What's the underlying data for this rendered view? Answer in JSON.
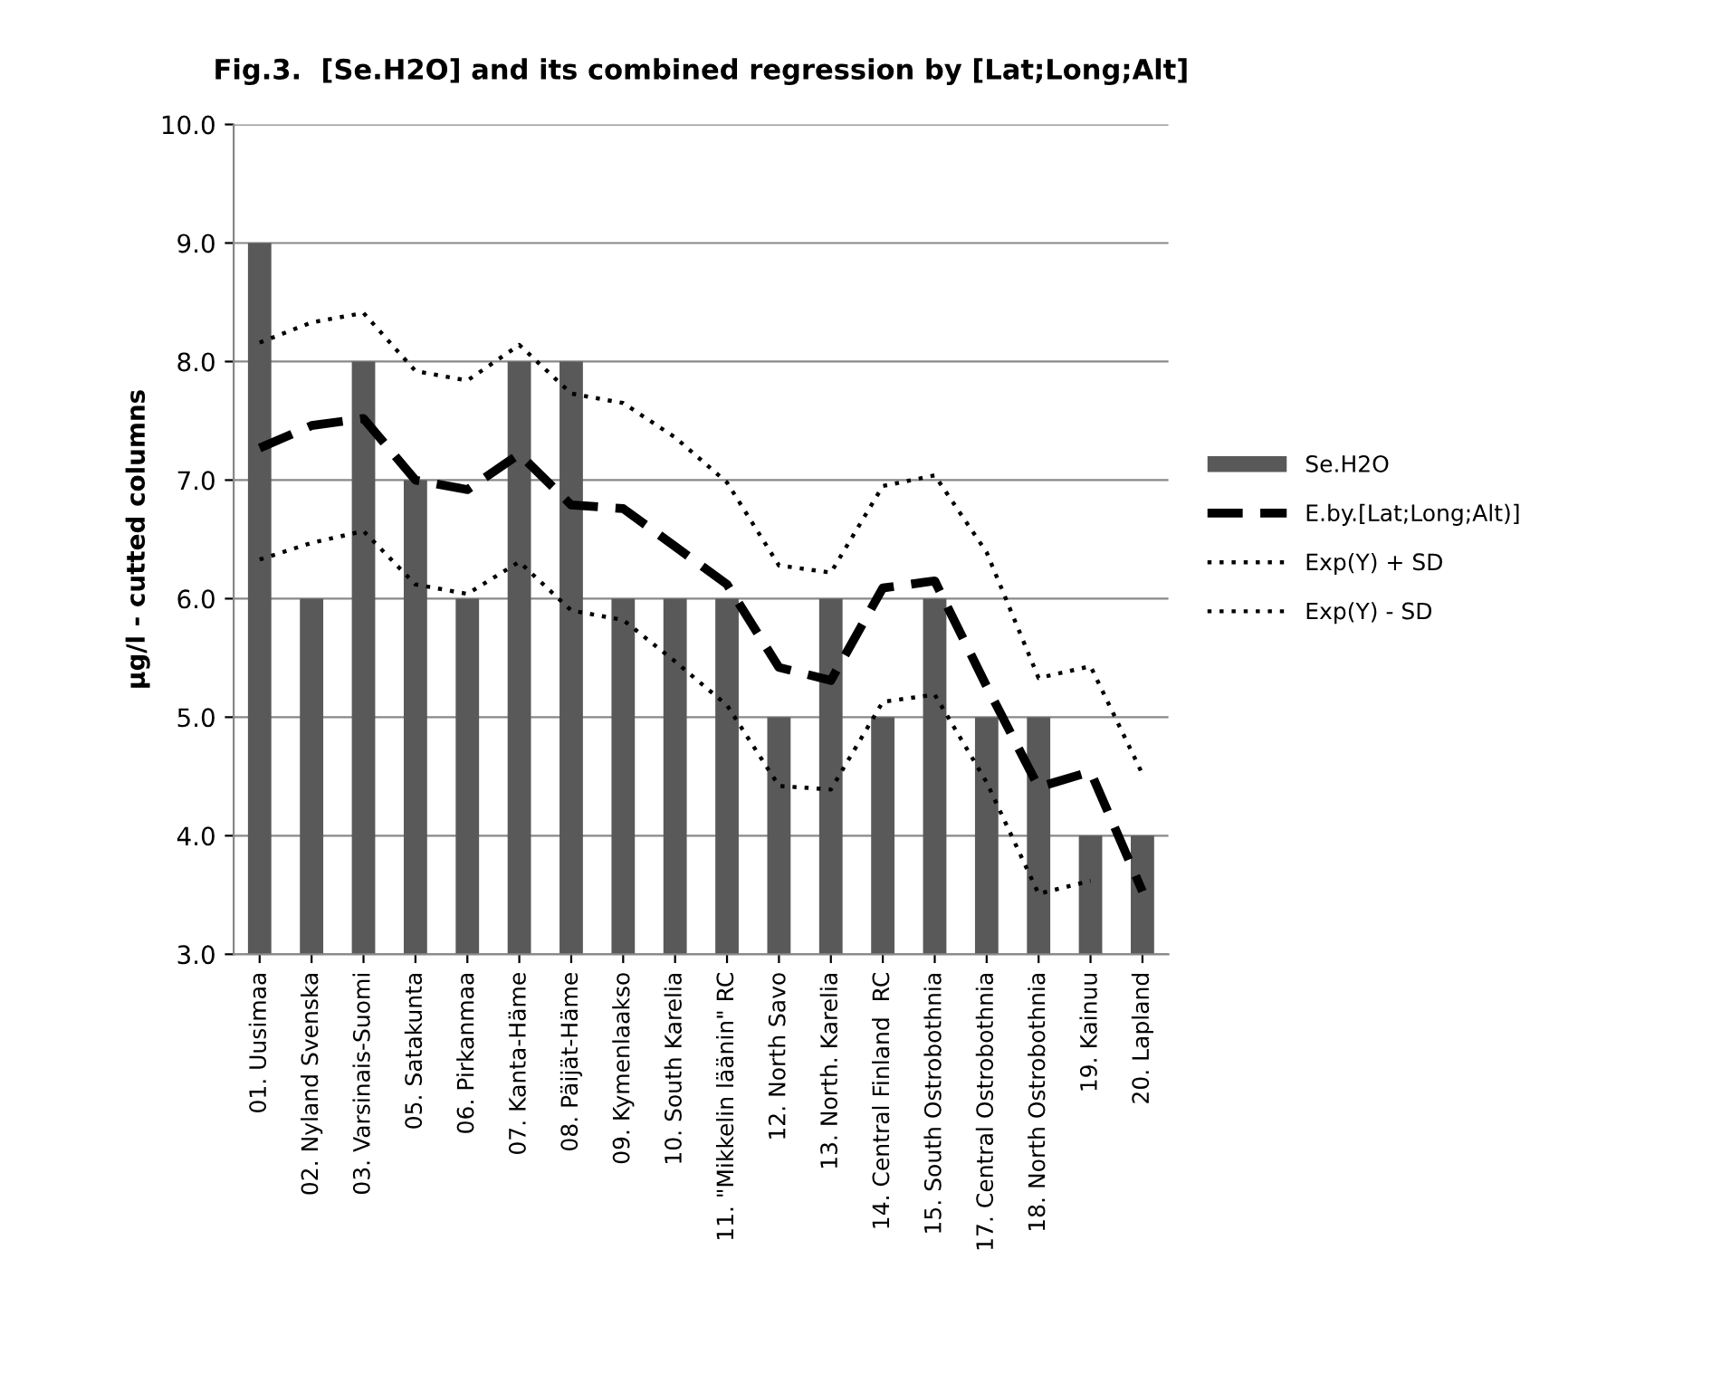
{
  "chart_data": {
    "type": "bar",
    "title": "Fig.3.  [Se.H2O] and its combined regression by [Lat;Long;Alt]",
    "ylabel": "µg/l - cutted columns",
    "categories": [
      "01. Uusimaa",
      "02. Nyland Svenska",
      "03. Varsinais-Suomi",
      "05. Satakunta",
      "06. Pirkanmaa",
      "07. Kanta-Häme",
      "08. Päijät-Häme",
      "09. Kymenlaakso",
      "10. South Karelia",
      "11. \"Mikkelin läänin\" RC",
      "12. North Savo",
      "13. North. Karelia",
      "14. Central Finland  RC",
      "15. South Ostrobothnia",
      "17. Central Ostrobothnia",
      "18. North Ostrobothnia",
      "19. Kainuu",
      "20. Lapland"
    ],
    "series": [
      {
        "name": "Se.H2O",
        "color": "#595959",
        "values": [
          9,
          6,
          8,
          7,
          6,
          8,
          8,
          6,
          6,
          6,
          5,
          6,
          5,
          6,
          5,
          5,
          4,
          4
        ]
      },
      {
        "name": "E.by.[Lat;Long;Alt)]",
        "type": "line",
        "line_style": "dashed",
        "color": "#000000",
        "values": [
          7.27,
          7.46,
          7.52,
          7.0,
          6.92,
          7.22,
          6.79,
          6.76,
          6.44,
          6.12,
          5.42,
          5.31,
          6.09,
          6.15,
          5.26,
          4.41,
          4.54,
          3.53
        ]
      },
      {
        "name": "Exp(Y) + SD",
        "type": "line",
        "line_style": "dotted",
        "color": "#000000",
        "values": [
          8.16,
          8.33,
          8.41,
          7.92,
          7.84,
          8.14,
          7.73,
          7.65,
          7.36,
          6.98,
          6.28,
          6.22,
          6.95,
          7.04,
          6.39,
          5.33,
          5.43,
          4.52
        ]
      },
      {
        "name": "Exp(Y) - SD",
        "type": "line",
        "line_style": "dotted",
        "color": "#000000",
        "values": [
          6.33,
          6.47,
          6.57,
          6.12,
          6.04,
          6.31,
          5.9,
          5.82,
          5.47,
          5.1,
          4.42,
          4.39,
          5.13,
          5.19,
          4.45,
          3.51,
          3.62,
          null
        ]
      }
    ],
    "ylim": [
      3.0,
      10.0
    ],
    "yticks": [
      {
        "value": 3,
        "label": "3.0"
      },
      {
        "value": 4,
        "label": "4.0"
      },
      {
        "value": 5,
        "label": "5.0"
      },
      {
        "value": 6,
        "label": "6.0"
      },
      {
        "value": 7,
        "label": "7.0"
      },
      {
        "value": 8,
        "label": "8.0"
      },
      {
        "value": 9,
        "label": "9.0"
      },
      {
        "value": 10,
        "label": "10.0"
      }
    ],
    "grid": "y",
    "legend": "right"
  }
}
